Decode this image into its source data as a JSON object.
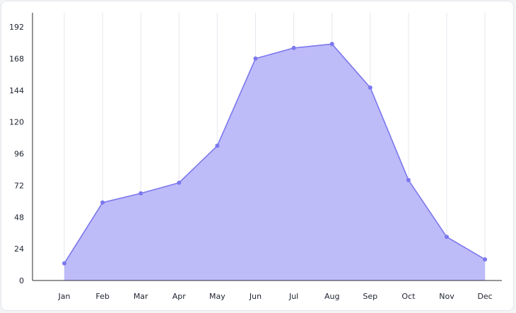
{
  "chart_data": {
    "type": "area",
    "title": "",
    "xlabel": "",
    "ylabel": "",
    "categories": [
      "Jan",
      "Feb",
      "Mar",
      "Apr",
      "May",
      "Jun",
      "Jul",
      "Aug",
      "Sep",
      "Oct",
      "Nov",
      "Dec"
    ],
    "series": [
      {
        "values": [
          13,
          59,
          66,
          74,
          102,
          168,
          176,
          179,
          146,
          76,
          33,
          16
        ]
      }
    ],
    "yticks": [
      0,
      24,
      48,
      72,
      96,
      120,
      144,
      168,
      192
    ],
    "ylim": [
      0,
      204
    ],
    "grid": {
      "vertical": true,
      "horizontal": false
    },
    "legend": "none",
    "colors": {
      "line": "#7b78ee",
      "fill": "#bebbf9",
      "point": "#7b78ee",
      "grid": "#e6e7ee",
      "axis": "#2a2d36"
    }
  }
}
